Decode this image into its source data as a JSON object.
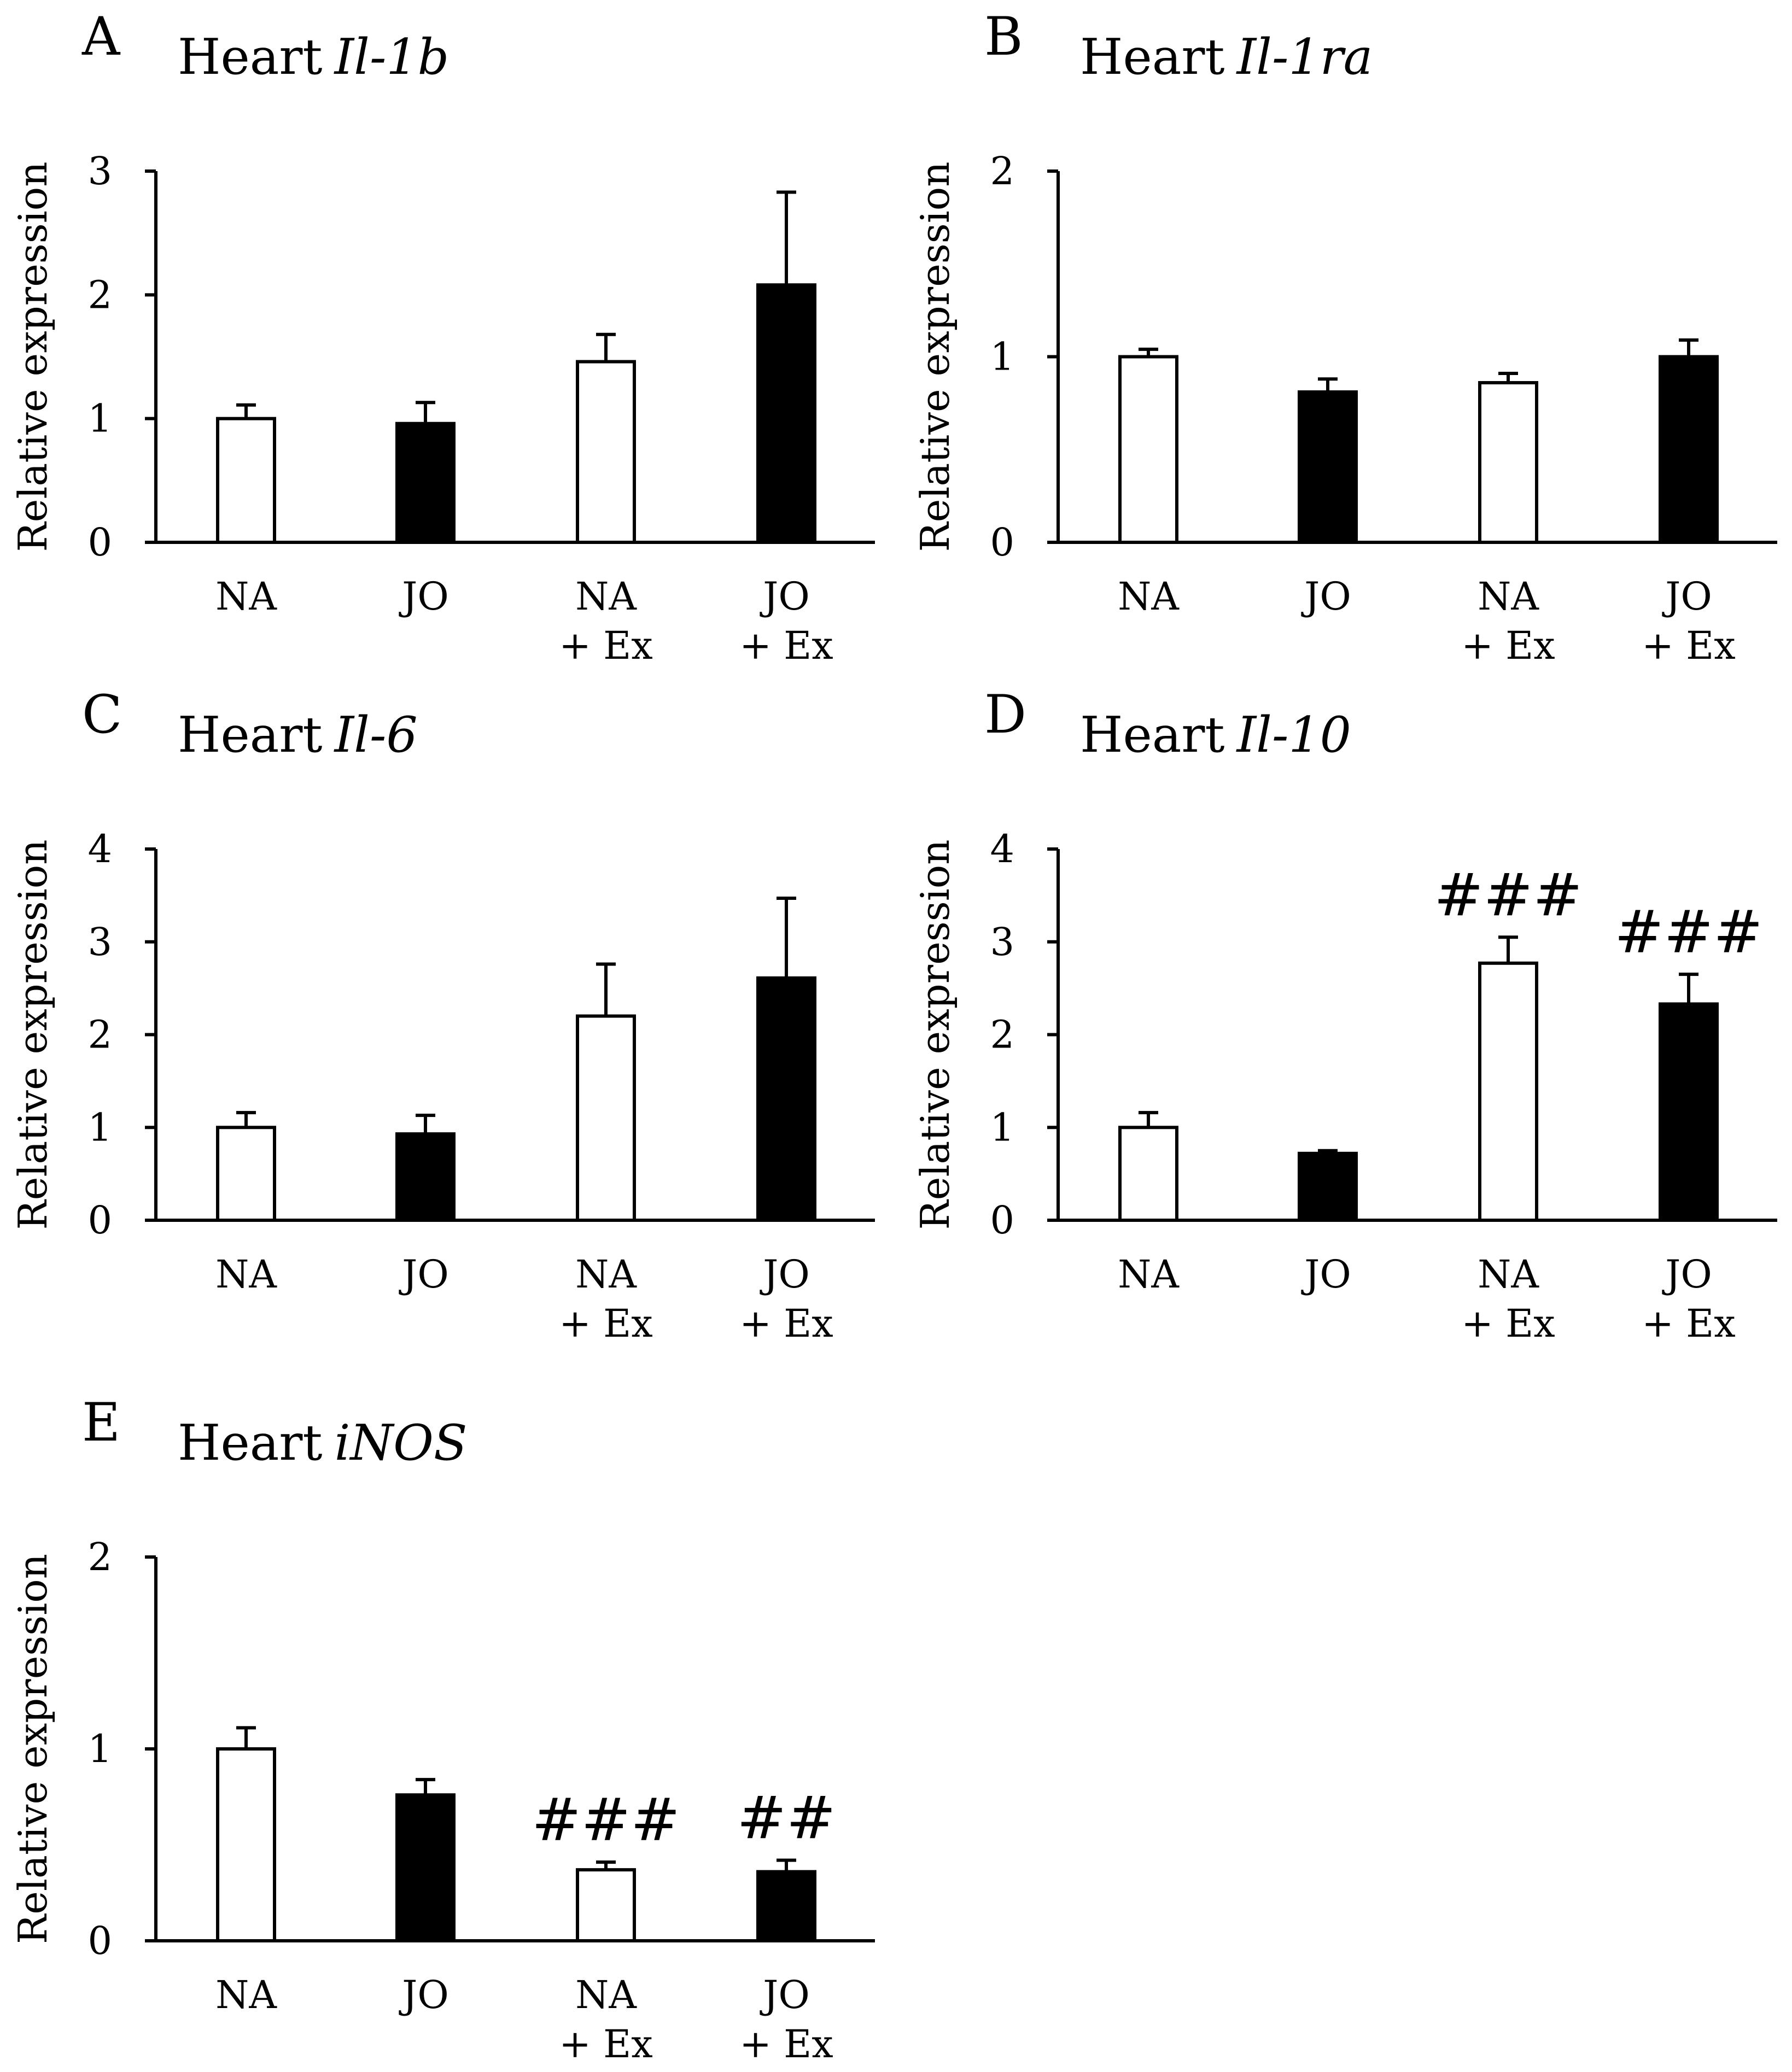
{
  "colors": {
    "open": "#ffffff",
    "filled": "#000000",
    "stroke": "#000000"
  },
  "chart_data": [
    {
      "panel": "A",
      "type": "bar",
      "title": "Heart",
      "gene": "Il-1b",
      "ylabel": "Relative expression",
      "xlabel": "",
      "categories": [
        [
          "NA"
        ],
        [
          "JO"
        ],
        [
          "NA",
          "+ Ex"
        ],
        [
          "JO",
          "+ Ex"
        ]
      ],
      "fill": [
        "open",
        "filled",
        "open",
        "filled"
      ],
      "values": [
        1.0,
        0.96,
        1.46,
        2.08
      ],
      "errors": [
        0.11,
        0.17,
        0.22,
        0.75
      ],
      "significance": [
        "",
        "",
        "",
        ""
      ],
      "ylim": [
        0,
        3
      ],
      "yticks": [
        "0",
        "1",
        "2",
        "3"
      ]
    },
    {
      "panel": "B",
      "type": "bar",
      "title": "Heart",
      "gene": "Il-1ra",
      "ylabel": "Relative expression",
      "xlabel": "",
      "categories": [
        [
          "NA"
        ],
        [
          "JO"
        ],
        [
          "NA",
          "+ Ex"
        ],
        [
          "JO",
          "+ Ex"
        ]
      ],
      "fill": [
        "open",
        "filled",
        "open",
        "filled"
      ],
      "values": [
        1.0,
        0.81,
        0.86,
        1.0
      ],
      "errors": [
        0.04,
        0.07,
        0.05,
        0.09
      ],
      "significance": [
        "",
        "",
        "",
        ""
      ],
      "ylim": [
        0,
        2
      ],
      "yticks": [
        "0",
        "1",
        "2"
      ]
    },
    {
      "panel": "C",
      "type": "bar",
      "title": "Heart",
      "gene": "Il-6",
      "ylabel": "Relative expression",
      "xlabel": "",
      "categories": [
        [
          "NA"
        ],
        [
          "JO"
        ],
        [
          "NA",
          "+ Ex"
        ],
        [
          "JO",
          "+ Ex"
        ]
      ],
      "fill": [
        "open",
        "filled",
        "open",
        "filled"
      ],
      "values": [
        1.0,
        0.93,
        2.2,
        2.61
      ],
      "errors": [
        0.16,
        0.2,
        0.56,
        0.86
      ],
      "significance": [
        "",
        "",
        "",
        ""
      ],
      "ylim": [
        0,
        4
      ],
      "yticks": [
        "0",
        "1",
        "2",
        "3",
        "4"
      ]
    },
    {
      "panel": "D",
      "type": "bar",
      "title": "Heart",
      "gene": "Il-10",
      "ylabel": "Relative expression",
      "xlabel": "",
      "categories": [
        [
          "NA"
        ],
        [
          "JO"
        ],
        [
          "NA",
          "+ Ex"
        ],
        [
          "JO",
          "+ Ex"
        ]
      ],
      "fill": [
        "open",
        "filled",
        "open",
        "filled"
      ],
      "values": [
        1.0,
        0.72,
        2.77,
        2.33
      ],
      "errors": [
        0.16,
        0.03,
        0.28,
        0.32
      ],
      "significance": [
        "",
        "",
        "###",
        "###"
      ],
      "ylim": [
        0,
        4
      ],
      "yticks": [
        "0",
        "1",
        "2",
        "3",
        "4"
      ]
    },
    {
      "panel": "E",
      "type": "bar",
      "title": "Heart",
      "gene": "iNOS",
      "ylabel": "Relative expression",
      "xlabel": "",
      "categories": [
        [
          "NA"
        ],
        [
          "JO"
        ],
        [
          "NA",
          "+ Ex"
        ],
        [
          "JO",
          "+ Ex"
        ]
      ],
      "fill": [
        "open",
        "filled",
        "open",
        "filled"
      ],
      "values": [
        1.0,
        0.76,
        0.37,
        0.36
      ],
      "errors": [
        0.11,
        0.08,
        0.04,
        0.06
      ],
      "significance": [
        "",
        "",
        "###",
        "##"
      ],
      "ylim": [
        0,
        2
      ],
      "yticks": [
        "0",
        "1",
        "2"
      ]
    }
  ]
}
